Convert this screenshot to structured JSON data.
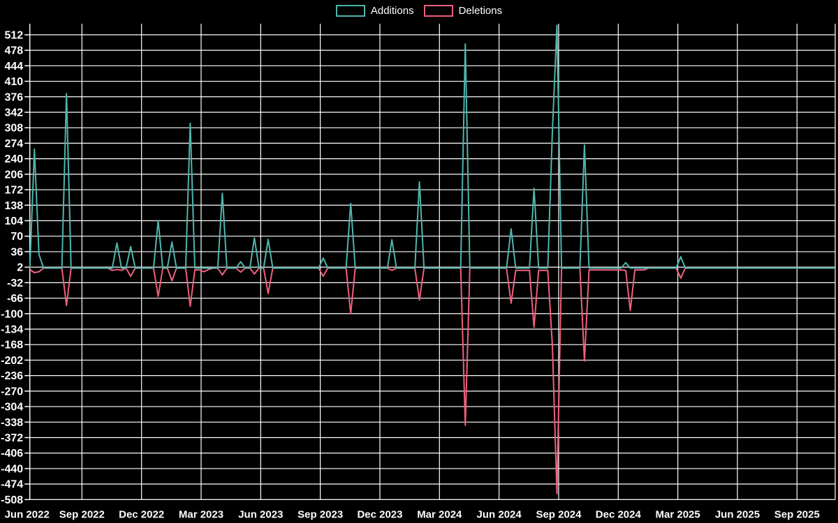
{
  "legend": {
    "additions_label": "Additions",
    "deletions_label": "Deletions"
  },
  "colors": {
    "background": "#000000",
    "grid": "#ffffff",
    "text": "#ffffff",
    "additions": "#4eb6ad",
    "deletions": "#f0607d"
  },
  "chart_data": {
    "type": "line",
    "title": "",
    "xlabel": "",
    "ylabel": "",
    "grid": true,
    "legend_position": "top-center",
    "ylim": [
      -508,
      533
    ],
    "y_tick_step": 34,
    "y_ticks": [
      512,
      478,
      444,
      410,
      376,
      342,
      308,
      274,
      240,
      206,
      172,
      138,
      104,
      70,
      36,
      2,
      -32,
      -66,
      -100,
      -134,
      -168,
      -202,
      -236,
      -270,
      -304,
      -338,
      -372,
      -406,
      -440,
      -474,
      -508
    ],
    "x_tick_labels": [
      "Jun 2022",
      "Sep 2022",
      "Dec 2022",
      "Mar 2023",
      "Jun 2023",
      "Sep 2023",
      "Dec 2023",
      "Mar 2024",
      "Jun 2024",
      "Sep 2024",
      "Dec 2024",
      "Mar 2025",
      "Jun 2025",
      "Sep 2025"
    ],
    "weeks_total": 177,
    "weeks_per_quarter": 13,
    "series": [
      {
        "name": "Additions",
        "color_key": "additions",
        "points": [
          {
            "week": 1,
            "value": 261
          },
          {
            "week": 2,
            "value": 30
          },
          {
            "week": 8,
            "value": 383
          },
          {
            "week": 19,
            "value": 55
          },
          {
            "week": 22,
            "value": 47
          },
          {
            "week": 28,
            "value": 104
          },
          {
            "week": 31,
            "value": 57
          },
          {
            "week": 35,
            "value": 318
          },
          {
            "week": 42,
            "value": 164
          },
          {
            "week": 46,
            "value": 14
          },
          {
            "week": 49,
            "value": 66
          },
          {
            "week": 52,
            "value": 63
          },
          {
            "week": 64,
            "value": 22
          },
          {
            "week": 70,
            "value": 142
          },
          {
            "week": 79,
            "value": 62
          },
          {
            "week": 85,
            "value": 189
          },
          {
            "week": 95,
            "value": 492
          },
          {
            "week": 105,
            "value": 86
          },
          {
            "week": 110,
            "value": 175
          },
          {
            "week": 114,
            "value": 300
          },
          {
            "week": 115,
            "value": 533
          },
          {
            "week": 121,
            "value": 270
          },
          {
            "week": 130,
            "value": 12
          },
          {
            "week": 142,
            "value": 25
          }
        ]
      },
      {
        "name": "Deletions",
        "color_key": "deletions",
        "points": [
          {
            "week": 0,
            "value": -3
          },
          {
            "week": 1,
            "value": -10
          },
          {
            "week": 2,
            "value": -8
          },
          {
            "week": 8,
            "value": -82
          },
          {
            "week": 18,
            "value": -5
          },
          {
            "week": 19,
            "value": -3
          },
          {
            "week": 20,
            "value": -5
          },
          {
            "week": 22,
            "value": -18
          },
          {
            "week": 28,
            "value": -62
          },
          {
            "week": 31,
            "value": -28
          },
          {
            "week": 35,
            "value": -84
          },
          {
            "week": 36,
            "value": -4
          },
          {
            "week": 37,
            "value": -4
          },
          {
            "week": 38,
            "value": -8
          },
          {
            "week": 39,
            "value": -3
          },
          {
            "week": 42,
            "value": -15
          },
          {
            "week": 46,
            "value": -9
          },
          {
            "week": 49,
            "value": -13
          },
          {
            "week": 52,
            "value": -56
          },
          {
            "week": 64,
            "value": -18
          },
          {
            "week": 70,
            "value": -100
          },
          {
            "week": 79,
            "value": -5
          },
          {
            "week": 85,
            "value": -70
          },
          {
            "week": 95,
            "value": -345
          },
          {
            "week": 105,
            "value": -77
          },
          {
            "week": 106,
            "value": -5
          },
          {
            "week": 107,
            "value": -5
          },
          {
            "week": 108,
            "value": -5
          },
          {
            "week": 109,
            "value": -5
          },
          {
            "week": 110,
            "value": -130
          },
          {
            "week": 111,
            "value": -5
          },
          {
            "week": 112,
            "value": -5
          },
          {
            "week": 113,
            "value": -5
          },
          {
            "week": 114,
            "value": -170
          },
          {
            "week": 115,
            "value": -495
          },
          {
            "week": 121,
            "value": -204
          },
          {
            "week": 122,
            "value": -4
          },
          {
            "week": 123,
            "value": -4
          },
          {
            "week": 124,
            "value": -4
          },
          {
            "week": 125,
            "value": -4
          },
          {
            "week": 126,
            "value": -4
          },
          {
            "week": 127,
            "value": -4
          },
          {
            "week": 128,
            "value": -4
          },
          {
            "week": 129,
            "value": -4
          },
          {
            "week": 130,
            "value": -5
          },
          {
            "week": 131,
            "value": -93
          },
          {
            "week": 132,
            "value": -4
          },
          {
            "week": 133,
            "value": -4
          },
          {
            "week": 134,
            "value": -4
          },
          {
            "week": 142,
            "value": -22
          }
        ]
      }
    ]
  }
}
